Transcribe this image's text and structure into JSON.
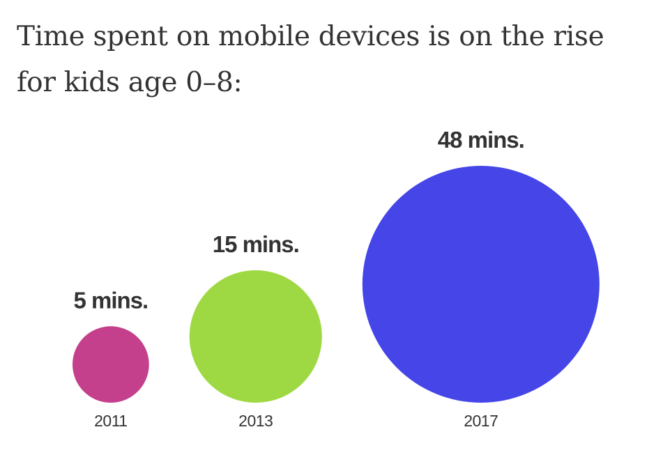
{
  "chart_data": {
    "type": "bubble",
    "title": "Time spent on mobile devices is on the rise for kids age 0–8:",
    "categories": [
      "2011",
      "2013",
      "2017"
    ],
    "values": [
      5,
      15,
      48
    ],
    "unit": "mins",
    "data_labels": [
      "5 mins.",
      "15 mins.",
      "48 mins."
    ],
    "colors": [
      "#c4408c",
      "#9ed943",
      "#4545e8"
    ],
    "xlabel": "",
    "ylabel": ""
  }
}
